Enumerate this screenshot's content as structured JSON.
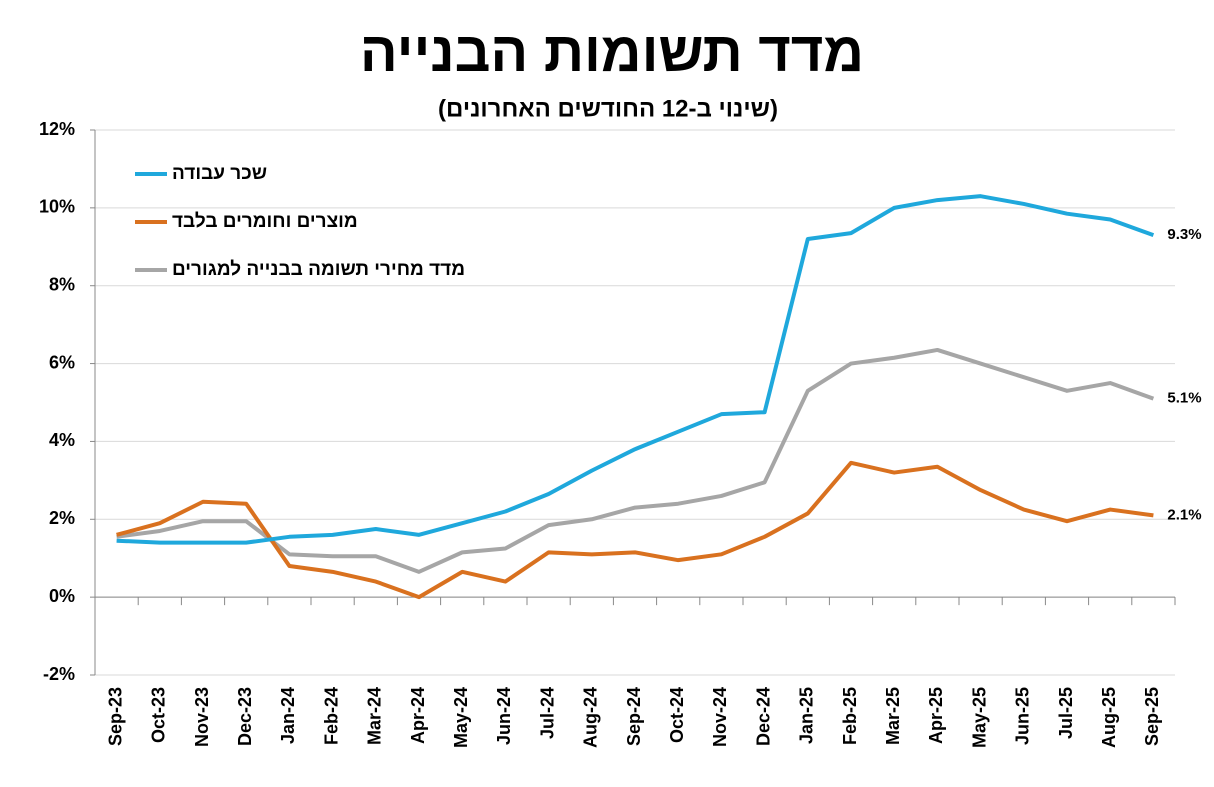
{
  "chart_data": {
    "type": "line",
    "title": "מדד תשומות הבנייה",
    "subtitle": "(שינוי ב-12 החודשים האחרונים)",
    "categories": [
      "Sep-23",
      "Oct-23",
      "Nov-23",
      "Dec-23",
      "Jan-24",
      "Feb-24",
      "Mar-24",
      "Apr-24",
      "May-24",
      "Jun-24",
      "Jul-24",
      "Aug-24",
      "Sep-24",
      "Oct-24",
      "Nov-24",
      "Dec-24",
      "Jan-25",
      "Feb-25",
      "Mar-25",
      "Apr-25",
      "May-25",
      "Jun-25",
      "Jul-25",
      "Aug-25",
      "Sep-25"
    ],
    "series": [
      {
        "name": "שכר עבודה",
        "color": "#1fa8dc",
        "end_label": "9.3%",
        "values": [
          1.45,
          1.4,
          1.4,
          1.4,
          1.55,
          1.6,
          1.75,
          1.6,
          1.9,
          2.2,
          2.65,
          3.25,
          3.8,
          4.25,
          4.7,
          4.75,
          9.2,
          9.35,
          10.0,
          10.2,
          10.3,
          10.1,
          9.85,
          9.7,
          9.3
        ]
      },
      {
        "name": "מוצרים וחומרים בלבד",
        "color": "#d9711f",
        "end_label": "2.1%",
        "values": [
          1.6,
          1.9,
          2.45,
          2.4,
          0.8,
          0.65,
          0.4,
          0.0,
          0.65,
          0.4,
          1.15,
          1.1,
          1.15,
          0.95,
          1.1,
          1.55,
          2.15,
          3.45,
          3.2,
          3.35,
          2.75,
          2.25,
          1.95,
          2.25,
          2.1
        ]
      },
      {
        "name": "מדד מחירי תשומה בבנייה למגורים",
        "color": "#a6a6a6",
        "end_label": "5.1%",
        "values": [
          1.55,
          1.7,
          1.95,
          1.95,
          1.1,
          1.05,
          1.05,
          0.65,
          1.15,
          1.25,
          1.85,
          2.0,
          2.3,
          2.4,
          2.6,
          2.95,
          5.3,
          6.0,
          6.15,
          6.35,
          6.0,
          5.65,
          5.3,
          5.5,
          5.1
        ]
      }
    ],
    "ylim": [
      -2,
      12
    ],
    "yticks": [
      {
        "value": -2,
        "label": "-2%"
      },
      {
        "value": 0,
        "label": "0%"
      },
      {
        "value": 2,
        "label": "2%"
      },
      {
        "value": 4,
        "label": "4%"
      },
      {
        "value": 6,
        "label": "6%"
      },
      {
        "value": 8,
        "label": "8%"
      },
      {
        "value": 10,
        "label": "10%"
      },
      {
        "value": 12,
        "label": "12%"
      }
    ],
    "grid": true,
    "legend": "top-left"
  }
}
